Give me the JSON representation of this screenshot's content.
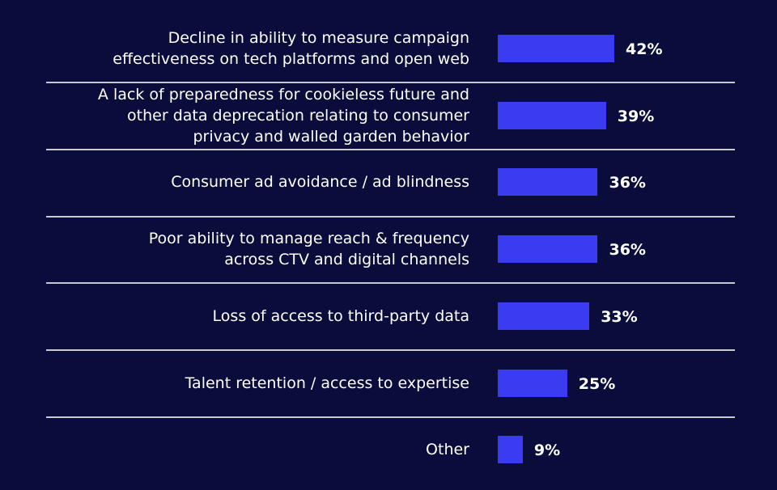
{
  "chart_data": {
    "type": "bar",
    "categories": [
      "Decline in ability to measure campaign\neffectiveness on tech platforms and open web",
      "A lack of preparedness for cookieless future and\nother data deprecation relating to consumer\nprivacy and walled garden behavior",
      "Consumer ad avoidance / ad blindness",
      "Poor ability to manage reach & frequency\nacross CTV and digital channels",
      "Loss of access to third-party data",
      "Talent retention / access to expertise",
      "Other"
    ],
    "values": [
      42,
      39,
      36,
      36,
      33,
      25,
      9
    ],
    "value_labels": [
      "42%",
      "39%",
      "36%",
      "36%",
      "33%",
      "25%",
      "9%"
    ],
    "color": "#3b3cf2"
  }
}
